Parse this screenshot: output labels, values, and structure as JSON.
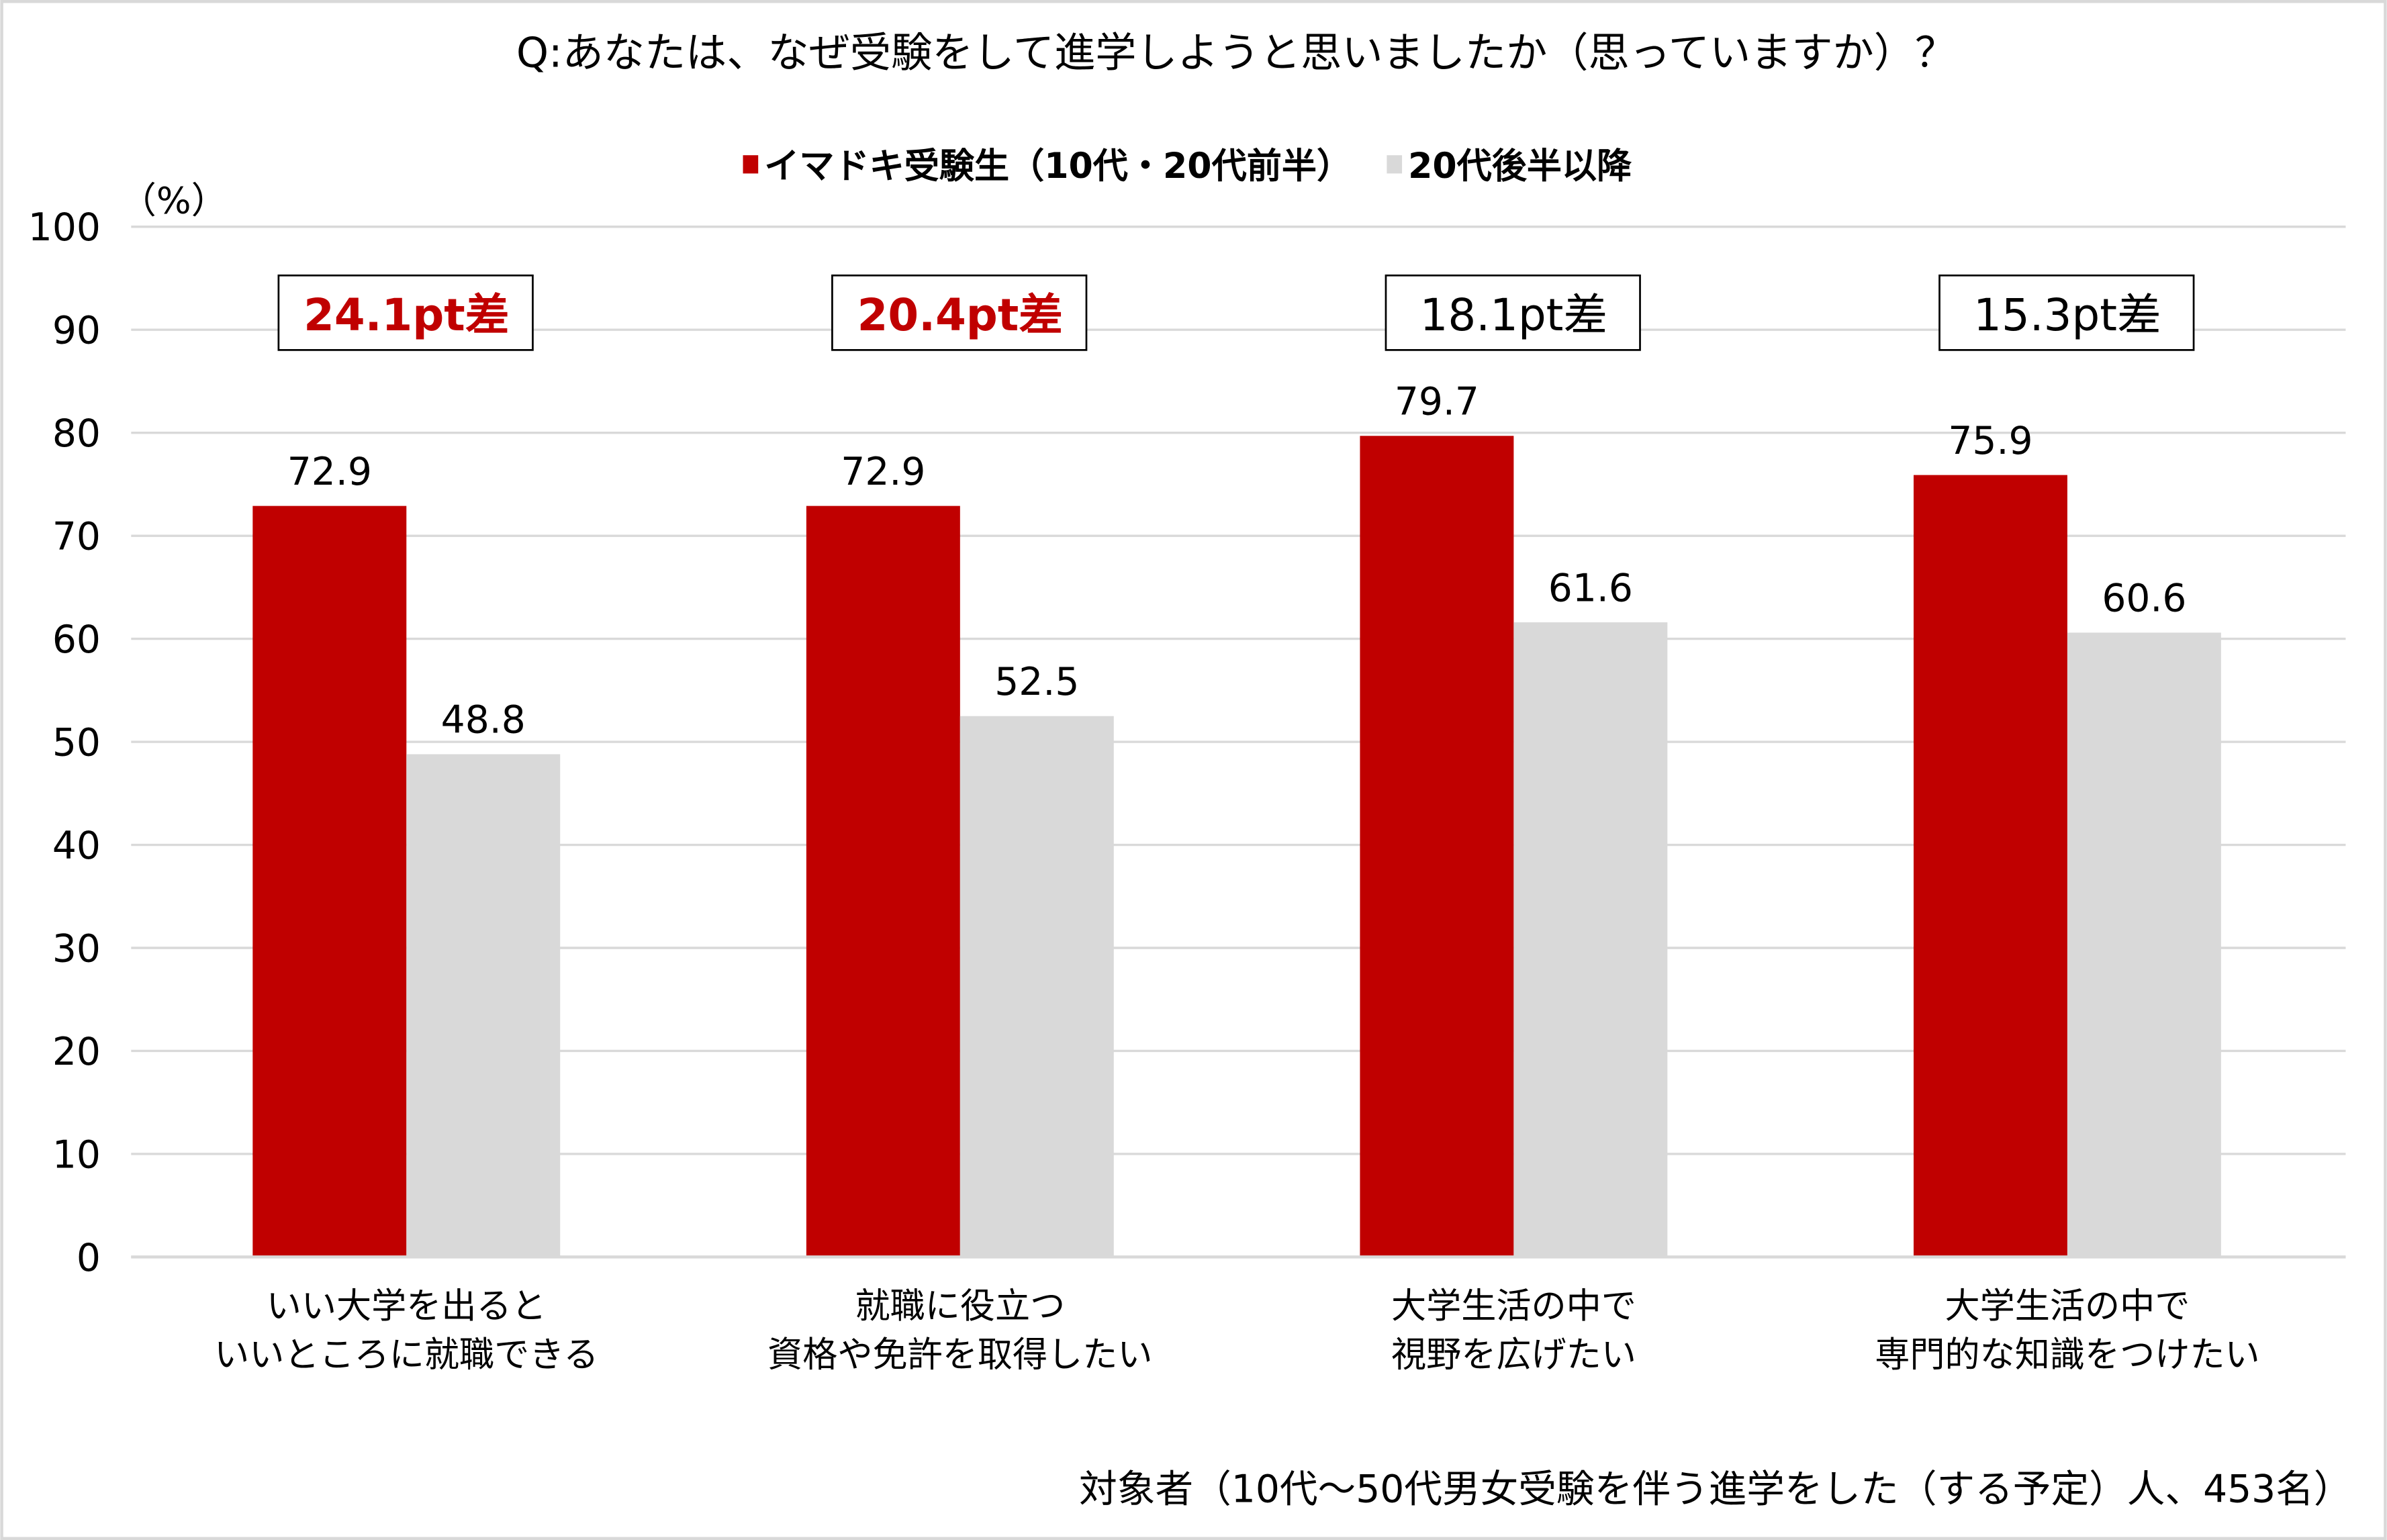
{
  "chart_data": {
    "type": "bar",
    "title": "Q:あなたは、なぜ受験をして進学しようと思いましたか（思っていますか）？",
    "ylabel": "（%）",
    "ylim": [
      0,
      100
    ],
    "yticks": [
      0,
      10,
      20,
      30,
      40,
      50,
      60,
      70,
      80,
      90,
      100
    ],
    "grid": true,
    "legend_position": "top-center",
    "categories": [
      [
        "いい大学を出ると",
        "いいところに就職できる"
      ],
      [
        "就職に役立つ",
        "資格や免許を取得したい"
      ],
      [
        "大学生活の中で",
        "視野を広げたい"
      ],
      [
        "大学生活の中で",
        "専門的な知識をつけたい"
      ]
    ],
    "series": [
      {
        "name": "イマドキ受験生（10代・20代前半）",
        "color": "#C00000",
        "values": [
          72.9,
          72.9,
          79.7,
          75.9
        ]
      },
      {
        "name": "20代後半以降",
        "color": "#D9D9D9",
        "values": [
          48.8,
          52.5,
          61.6,
          60.6
        ]
      }
    ],
    "annotations": [
      {
        "text": "24.1pt差",
        "highlight": true
      },
      {
        "text": "20.4pt差",
        "highlight": true
      },
      {
        "text": "18.1pt差",
        "highlight": false
      },
      {
        "text": "15.3pt差",
        "highlight": false
      }
    ],
    "footnote": "対象者（10代～50代男女受験を伴う進学をした（する予定）人、453名）",
    "colors": {
      "highlight_text": "#C00000",
      "grid": "#D9D9D9",
      "text": "#000000"
    }
  }
}
